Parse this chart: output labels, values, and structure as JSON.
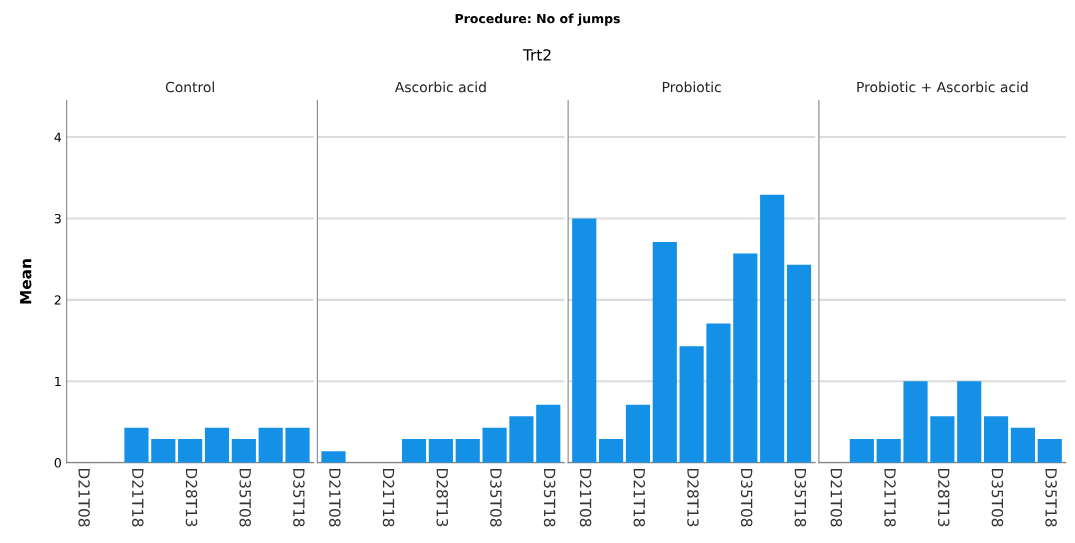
{
  "chart_data": [
    {
      "type": "bar",
      "title": "Control",
      "annotations": [
        "Procedure: No of jumps",
        "Trt2"
      ],
      "ylabel": "Mean",
      "categories": [
        "D21T08",
        null,
        "D21T18",
        null,
        "D28T13",
        null,
        "D35T08",
        null,
        "D35T18"
      ],
      "values": [
        0,
        0,
        0.43,
        0.29,
        0.29,
        0.43,
        0.29,
        0.43,
        0.43
      ],
      "color": "#1490e6",
      "ylim": [
        0,
        4.45
      ],
      "yticks": [
        0,
        1,
        2,
        3,
        4
      ],
      "grid": "y"
    },
    {
      "type": "bar",
      "title": "Ascorbic acid",
      "categories": [
        "D21T08",
        null,
        "D21T18",
        null,
        "D28T13",
        null,
        "D35T08",
        null,
        "D35T18"
      ],
      "values": [
        0.14,
        0,
        0,
        0.29,
        0.29,
        0.29,
        0.43,
        0.57,
        0.71
      ],
      "color": "#1490e6",
      "ylim": [
        0,
        4.45
      ],
      "yticks": [
        0,
        1,
        2,
        3,
        4
      ],
      "grid": "y",
      "tick_labels": "x"
    },
    {
      "type": "bar",
      "title": "Probiotic",
      "categories": [
        "D21T08",
        null,
        "D21T18",
        null,
        "D28T13",
        null,
        "D35T08",
        null,
        "D35T18"
      ],
      "values": [
        3.0,
        0.29,
        0.71,
        2.71,
        1.43,
        1.71,
        2.57,
        3.29,
        2.43
      ],
      "color": "#1490e6",
      "ylim": [
        0,
        4.45
      ],
      "yticks": [
        0,
        1,
        2,
        3,
        4
      ],
      "grid": "y",
      "tick_labels": "x"
    },
    {
      "type": "bar",
      "title": "Probiotic + Ascorbic acid",
      "categories": [
        "D21T08",
        null,
        "D21T18",
        null,
        "D28T13",
        null,
        "D35T08",
        null,
        "D35T18"
      ],
      "values": [
        0,
        0.29,
        0.29,
        1.0,
        0.57,
        1.0,
        0.57,
        0.43,
        0.29
      ],
      "color": "#1490e6",
      "ylim": [
        0,
        4.45
      ],
      "yticks": [
        0,
        1,
        2,
        3,
        4
      ],
      "grid": "y",
      "tick_labels": "x"
    }
  ]
}
